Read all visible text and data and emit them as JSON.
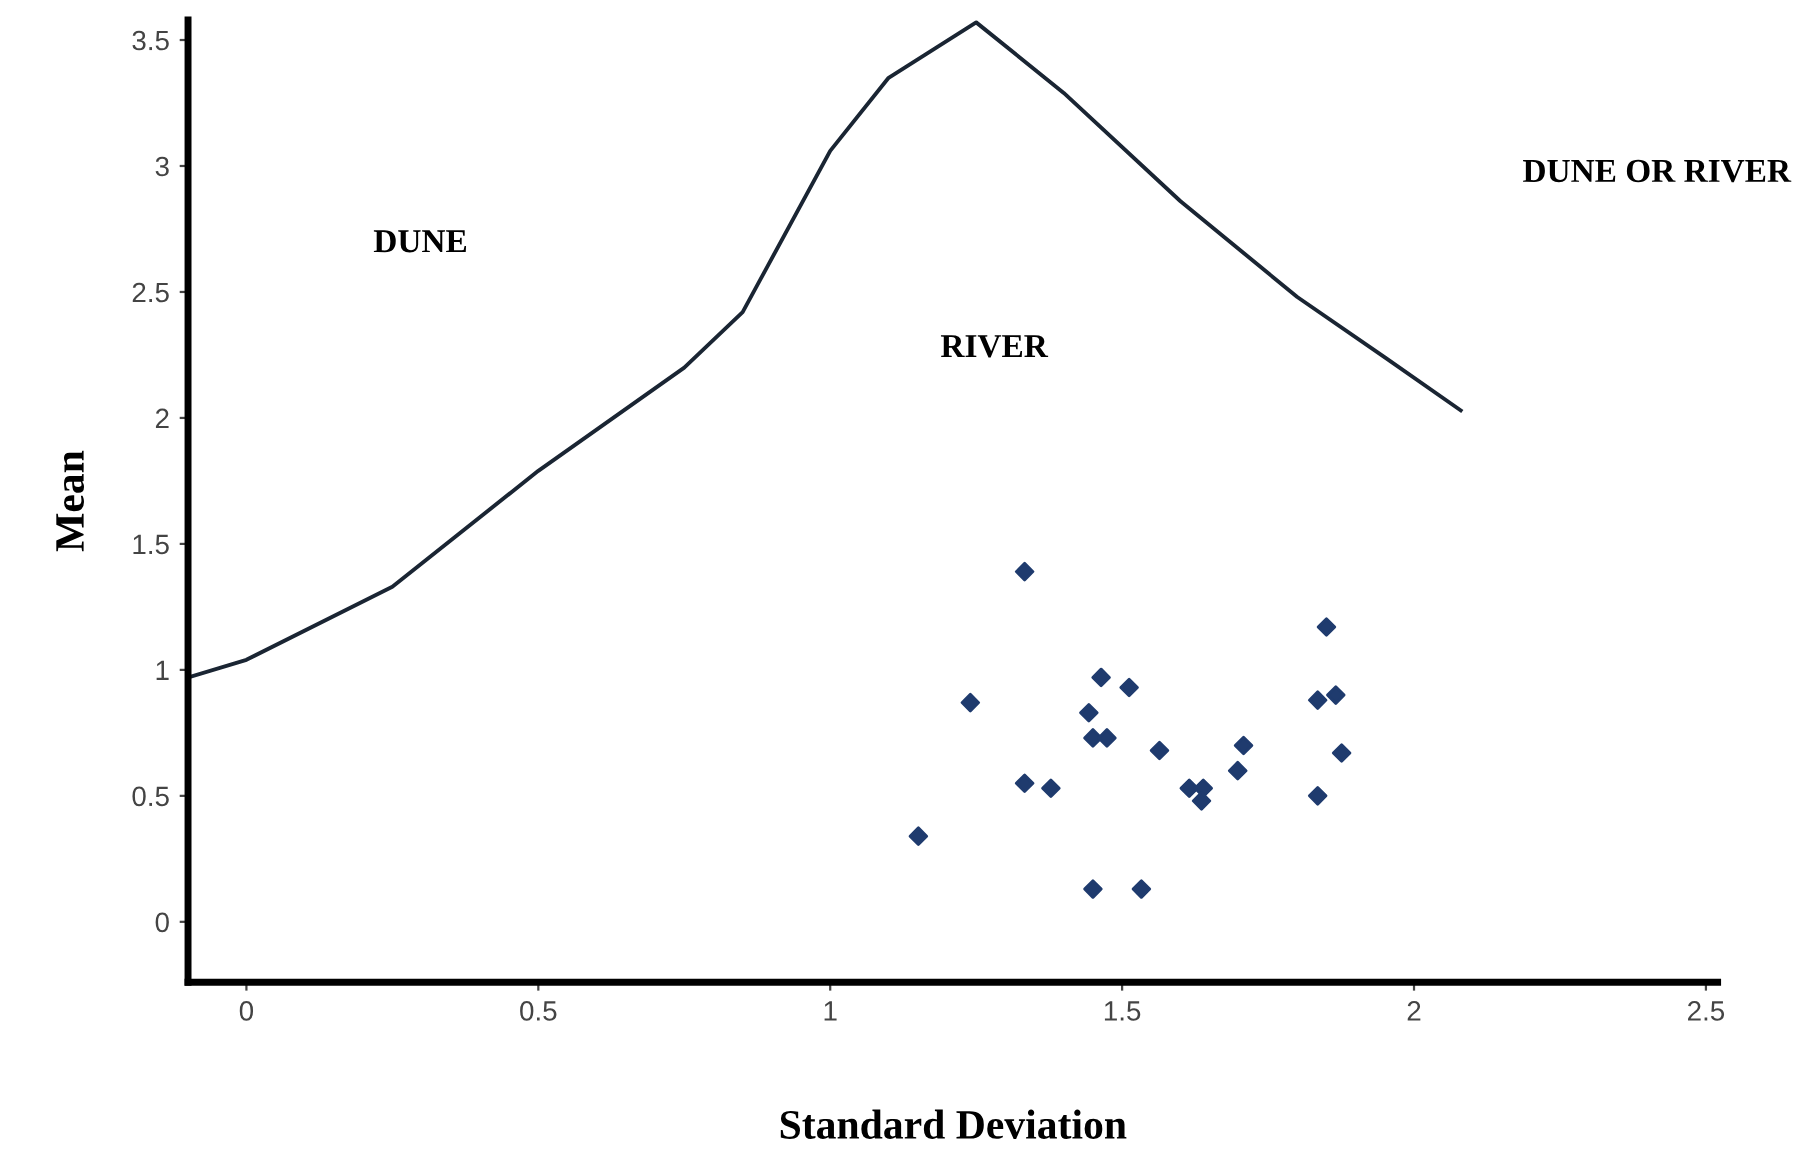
{
  "chart_data": {
    "type": "scatter",
    "xlabel": "Standard Deviation",
    "ylabel": "Mean",
    "xlim": [
      -0.1,
      2.52
    ],
    "ylim": [
      -0.24,
      3.58
    ],
    "xticks": [
      0,
      0.5,
      1,
      1.5,
      2,
      2.5
    ],
    "yticks": [
      0,
      0.5,
      1,
      1.5,
      2,
      2.5,
      3,
      3.5
    ],
    "grid": false,
    "legend": false,
    "marker": "diamond",
    "series": [
      {
        "type": "line",
        "color": "#1a2533",
        "marker": "none",
        "line_style": "solid",
        "x": [
          -0.1,
          0,
          0.25,
          0.5,
          0.75,
          0.85,
          1.0,
          1.1,
          1.25,
          1.4,
          1.6,
          1.8,
          1.95,
          2.08
        ],
        "values": [
          0.97,
          1.04,
          1.33,
          1.79,
          2.2,
          2.42,
          3.06,
          3.35,
          3.57,
          3.29,
          2.86,
          2.48,
          2.24,
          2.03
        ]
      },
      {
        "color": "#1f3b6e",
        "x": [
          1.333,
          1.85,
          1.464,
          1.512,
          1.24,
          1.443,
          1.835,
          1.866,
          1.45,
          1.474,
          1.564,
          1.708,
          1.876,
          1.698,
          1.333,
          1.378,
          1.615,
          1.639,
          1.636,
          1.835,
          1.151,
          1.45,
          1.533
        ],
        "values": [
          1.39,
          1.17,
          0.97,
          0.93,
          0.87,
          0.83,
          0.88,
          0.9,
          0.73,
          0.73,
          0.68,
          0.7,
          0.67,
          0.6,
          0.55,
          0.53,
          0.53,
          0.53,
          0.48,
          0.5,
          0.34,
          0.13,
          0.13
        ]
      }
    ],
    "annotations": [
      "DUNE",
      "RIVER",
      "DUNE OR RIVER"
    ]
  }
}
